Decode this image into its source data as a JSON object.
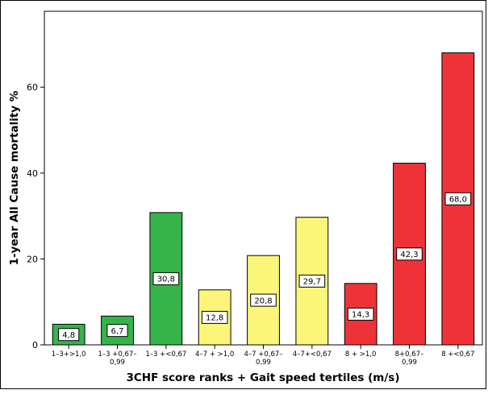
{
  "chart_data": {
    "type": "bar",
    "title": "",
    "xlabel": "3CHF score ranks + Gait speed tertiles (m/s)",
    "ylabel": "1-year All Cause mortality %",
    "ylim": [
      0,
      72
    ],
    "yticks": [
      0,
      20,
      40,
      60
    ],
    "grid": false,
    "legend": "none",
    "categories": [
      [
        "1–3+>1,0"
      ],
      [
        "1–3 +0,67–",
        "0,99"
      ],
      [
        "1–3 +<0,67"
      ],
      [
        "4–7 + >1,0"
      ],
      [
        "4–7 +0,67–",
        "0,99"
      ],
      [
        "4–7+<0,67"
      ],
      [
        "8 + >1,0"
      ],
      [
        "8+0,67–",
        "0,99"
      ],
      [
        "8 +<0,67"
      ]
    ],
    "values": [
      4.8,
      6.7,
      30.8,
      12.8,
      20.8,
      29.7,
      14.3,
      42.3,
      68.0
    ],
    "value_labels": [
      "4,8",
      "6,7",
      "30,8",
      "12,8",
      "20,8",
      "29,7",
      "14,3",
      "42,3",
      "68,0"
    ],
    "bar_colors": [
      "#35b44a",
      "#35b44a",
      "#35b44a",
      "#fbf57a",
      "#fbf57a",
      "#fbf57a",
      "#ee3338",
      "#ee3338",
      "#ee3338"
    ]
  }
}
